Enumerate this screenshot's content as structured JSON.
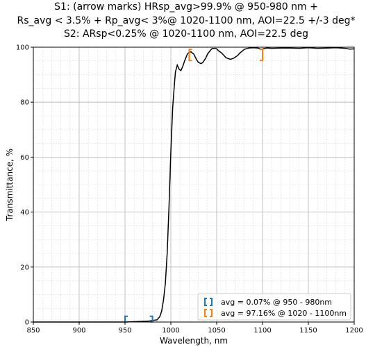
{
  "chart_data": {
    "type": "line",
    "title_lines": [
      "S1: (arrow marks) HRsp_avg>99.9% @ 950-980 nm +",
      "Rs_avg < 3.5% + Rp_avg< 3%@ 1020-1100 nm, AOI=22.5 +/-3 deg*",
      "S2:  ARsp<0.25% @ 1020-1100 nm, AOI=22.5 deg"
    ],
    "xlabel": "Wavelength, nm",
    "ylabel": "Transmittance, %",
    "xlim": [
      850,
      1200
    ],
    "ylim": [
      0,
      100
    ],
    "xticks": [
      "850",
      "900",
      "950",
      "1000",
      "1050",
      "1100",
      "1150",
      "1200"
    ],
    "yticks": [
      "0",
      "20",
      "40",
      "60",
      "80",
      "100"
    ],
    "grid": true,
    "legend_position": "bottom-right",
    "series": [
      {
        "color": "#000000",
        "x": [
          850,
          900,
          950,
          975,
          985,
          988,
          990,
          992,
          994,
          996,
          998,
          1000,
          1002,
          1004,
          1005,
          1007,
          1009,
          1011,
          1013,
          1015,
          1018,
          1020,
          1022,
          1025,
          1028,
          1030,
          1033,
          1035,
          1038,
          1040,
          1043,
          1045,
          1048,
          1050,
          1052,
          1055,
          1058,
          1060,
          1063,
          1065,
          1068,
          1070,
          1073,
          1075,
          1078,
          1080,
          1085,
          1090,
          1095,
          1098,
          1100,
          1103,
          1105,
          1110,
          1120,
          1130,
          1140,
          1150,
          1160,
          1170,
          1180,
          1190,
          1195,
          1200
        ],
        "y": [
          0.0,
          0.0,
          0.0,
          0.3,
          0.8,
          2,
          4,
          8,
          14,
          25,
          42,
          62,
          78,
          87,
          91,
          93.5,
          92,
          91.5,
          93,
          95,
          97.5,
          98.2,
          98.3,
          97.5,
          95.5,
          94.5,
          94,
          94.5,
          96,
          97.5,
          98.8,
          99.5,
          99.6,
          99.4,
          98.7,
          98,
          97,
          96.2,
          95.8,
          95.6,
          95.9,
          96.3,
          97,
          97.8,
          98.6,
          99.2,
          99.7,
          99.8,
          99.7,
          99.3,
          99.3,
          99.6,
          99.7,
          99.6,
          99.7,
          99.7,
          99.6,
          99.8,
          99.6,
          99.7,
          99.8,
          99.6,
          99.3,
          99.4
        ]
      }
    ],
    "brackets": [
      {
        "color": "#1f77b4",
        "x_start": 950,
        "x_end": 980,
        "y": 0.07
      },
      {
        "color": "#ff7f0e",
        "x_start": 1020,
        "x_end": 1100,
        "y": 97.16
      }
    ],
    "legend": [
      {
        "color": "#1f77b4",
        "label": "avg = 0.07% @ 950 - 980nm"
      },
      {
        "color": "#ff7f0e",
        "label": "avg = 97.16% @ 1020 - 1100nm"
      }
    ]
  }
}
